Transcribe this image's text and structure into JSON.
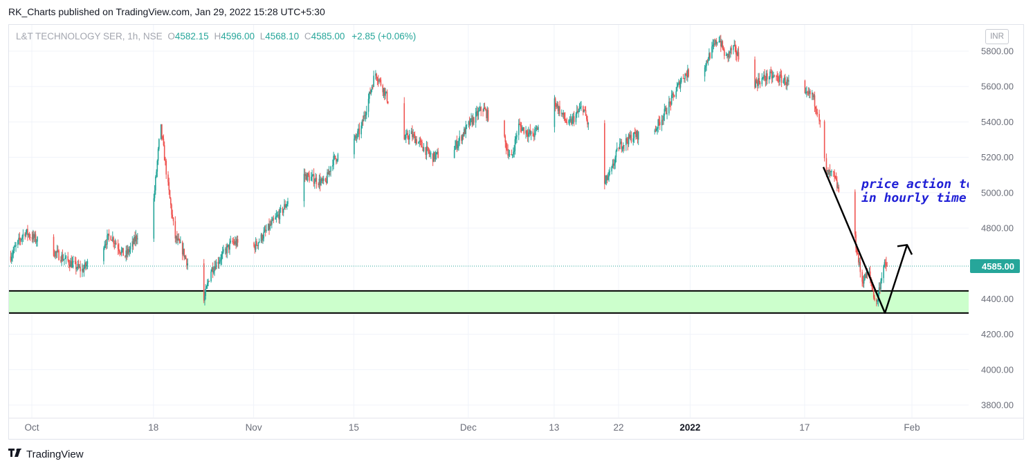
{
  "header": {
    "published_text": "RK_Charts published on TradingView.com, Jan 29, 2022 15:28 UTC+5:30"
  },
  "legend": {
    "symbol": "L&T TECHNOLOGY SER, 1h, NSE",
    "open_label": "O",
    "open": "4582.15",
    "high_label": "H",
    "high": "4596.00",
    "low_label": "L",
    "low": "4568.10",
    "close_label": "C",
    "close": "4585.00",
    "change": "+2.85 (+0.06%)"
  },
  "currency": "INR",
  "footer": {
    "brand": "TradingView",
    "logo": "tradingview-logo-icon"
  },
  "colors": {
    "up": "#26a69a",
    "down": "#ef5350",
    "zone_fill": "#ccffcc",
    "annotation_text": "#1f1fd6",
    "last_price_bg": "#26a69a"
  },
  "chart_data": {
    "type": "candlestick",
    "symbol": "L&T TECHNOLOGY SER",
    "interval": "1h",
    "exchange": "NSE",
    "ylim": [
      3700,
      5950
    ],
    "y_ticks": [
      "5800.00",
      "5600.00",
      "5400.00",
      "5200.00",
      "5000.00",
      "4800.00",
      "4400.00",
      "4200.00",
      "4000.00",
      "3800.00"
    ],
    "x_ticks": [
      {
        "label": "Oct",
        "date": "2021-10-01",
        "bold": false
      },
      {
        "label": "18",
        "date": "2021-10-18",
        "bold": false
      },
      {
        "label": "Nov",
        "date": "2021-11-01",
        "bold": false
      },
      {
        "label": "15",
        "date": "2021-11-15",
        "bold": false
      },
      {
        "label": "Dec",
        "date": "2021-12-01",
        "bold": false
      },
      {
        "label": "13",
        "date": "2021-12-13",
        "bold": false
      },
      {
        "label": "22",
        "date": "2021-12-22",
        "bold": false
      },
      {
        "label": "2022",
        "date": "2022-01-01",
        "bold": true
      },
      {
        "label": "17",
        "date": "2022-01-17",
        "bold": false
      },
      {
        "label": "Feb",
        "date": "2022-02-01",
        "bold": false
      }
    ],
    "last_price": "4585.00",
    "last_price_value": 4585,
    "support_zone": {
      "low": 4320,
      "high": 4445
    },
    "annotation": {
      "line1": "price action took a V shape",
      "line2": "in hourly time frame",
      "visible_line1": "price action took",
      "visible_line2": "in hourly time fr"
    },
    "v_pattern": [
      {
        "date": "2022-01-20",
        "price": 5145
      },
      {
        "date": "2022-01-27",
        "price": 4320
      },
      {
        "date": "2022-01-28",
        "price": 4705
      }
    ],
    "path_keypoints": [
      {
        "date": "2021-09-28",
        "price": 4640
      },
      {
        "date": "2021-09-30",
        "price": 4780
      },
      {
        "date": "2021-10-05",
        "price": 4640
      },
      {
        "date": "2021-10-08",
        "price": 4560
      },
      {
        "date": "2021-10-12",
        "price": 4760
      },
      {
        "date": "2021-10-14",
        "price": 4640
      },
      {
        "date": "2021-10-15",
        "price": 4700
      },
      {
        "date": "2021-10-18",
        "price": 4940
      },
      {
        "date": "2021-10-19",
        "price": 5380
      },
      {
        "date": "2021-10-20",
        "price": 5050
      },
      {
        "date": "2021-10-21",
        "price": 4750
      },
      {
        "date": "2021-10-22",
        "price": 4680
      },
      {
        "date": "2021-10-25",
        "price": 4380
      },
      {
        "date": "2021-10-26",
        "price": 4560
      },
      {
        "date": "2021-10-29",
        "price": 4720
      },
      {
        "date": "2021-11-01",
        "price": 4690
      },
      {
        "date": "2021-11-05",
        "price": 4900
      },
      {
        "date": "2021-11-08",
        "price": 5100
      },
      {
        "date": "2021-11-11",
        "price": 5050
      },
      {
        "date": "2021-11-12",
        "price": 5180
      },
      {
        "date": "2021-11-15",
        "price": 5290
      },
      {
        "date": "2021-11-16",
        "price": 5360
      },
      {
        "date": "2021-11-18",
        "price": 5680
      },
      {
        "date": "2021-11-19",
        "price": 5600
      },
      {
        "date": "2021-11-22",
        "price": 5300
      },
      {
        "date": "2021-11-23",
        "price": 5330
      },
      {
        "date": "2021-11-26",
        "price": 5200
      },
      {
        "date": "2021-11-29",
        "price": 5250
      },
      {
        "date": "2021-12-01",
        "price": 5380
      },
      {
        "date": "2021-12-03",
        "price": 5480
      },
      {
        "date": "2021-12-06",
        "price": 5300
      },
      {
        "date": "2021-12-07",
        "price": 5180
      },
      {
        "date": "2021-12-08",
        "price": 5380
      },
      {
        "date": "2021-12-10",
        "price": 5320
      },
      {
        "date": "2021-12-13",
        "price": 5520
      },
      {
        "date": "2021-12-15",
        "price": 5380
      },
      {
        "date": "2021-12-17",
        "price": 5490
      },
      {
        "date": "2021-12-20",
        "price": 5050
      },
      {
        "date": "2021-12-21",
        "price": 5120
      },
      {
        "date": "2021-12-22",
        "price": 5260
      },
      {
        "date": "2021-12-24",
        "price": 5320
      },
      {
        "date": "2021-12-27",
        "price": 5350
      },
      {
        "date": "2021-12-29",
        "price": 5490
      },
      {
        "date": "2021-12-31",
        "price": 5660
      },
      {
        "date": "2022-01-03",
        "price": 5720
      },
      {
        "date": "2022-01-05",
        "price": 5880
      },
      {
        "date": "2022-01-06",
        "price": 5760
      },
      {
        "date": "2022-01-07",
        "price": 5820
      },
      {
        "date": "2022-01-10",
        "price": 5620
      },
      {
        "date": "2022-01-12",
        "price": 5660
      },
      {
        "date": "2022-01-14",
        "price": 5640
      },
      {
        "date": "2022-01-17",
        "price": 5540
      },
      {
        "date": "2022-01-18",
        "price": 5560
      },
      {
        "date": "2022-01-19",
        "price": 5440
      },
      {
        "date": "2022-01-20",
        "price": 5110
      },
      {
        "date": "2022-01-21",
        "price": 5100
      },
      {
        "date": "2022-01-24",
        "price": 4750
      },
      {
        "date": "2022-01-25",
        "price": 4500
      },
      {
        "date": "2022-01-26",
        "price": 4550
      },
      {
        "date": "2022-01-27",
        "price": 4360
      },
      {
        "date": "2022-01-28",
        "price": 4585
      }
    ]
  }
}
